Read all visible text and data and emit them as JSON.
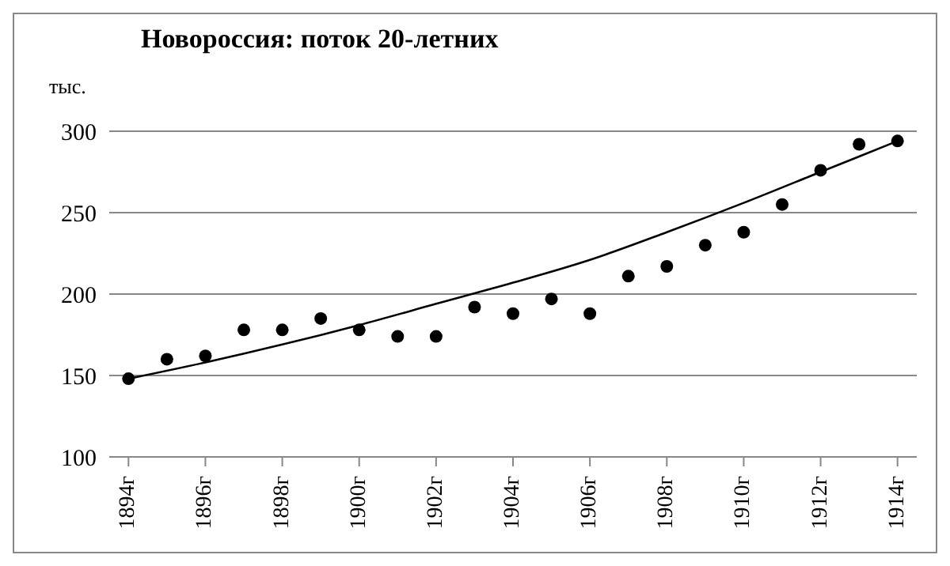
{
  "chart_data": {
    "type": "scatter",
    "title": "Новороссия: поток 20-летних",
    "ylabel": "тыс.",
    "x": [
      1894,
      1895,
      1896,
      1897,
      1898,
      1899,
      1900,
      1901,
      1902,
      1903,
      1904,
      1905,
      1906,
      1907,
      1908,
      1909,
      1910,
      1911,
      1912,
      1913,
      1914
    ],
    "series": [
      {
        "color": "#000000",
        "marker": "circle",
        "values": [
          148,
          160,
          162,
          178,
          178,
          185,
          178,
          174,
          174,
          192,
          188,
          197,
          188,
          211,
          217,
          230,
          238,
          255,
          276,
          292,
          294
        ]
      },
      {
        "type": "line",
        "color": "#000000",
        "marker": "none",
        "x": [
          1894,
          1896,
          1898,
          1900,
          1902,
          1904,
          1906,
          1908,
          1910,
          1912,
          1914
        ],
        "values": [
          148,
          158,
          169,
          181,
          194,
          207,
          221,
          238,
          256,
          275,
          294
        ]
      }
    ],
    "xlim": [
      1893.5,
      1914.5
    ],
    "xticks": [
      {
        "value": 1894,
        "label": "1894г"
      },
      {
        "value": 1896,
        "label": "1896г"
      },
      {
        "value": 1898,
        "label": "1898г"
      },
      {
        "value": 1900,
        "label": "1900г"
      },
      {
        "value": 1902,
        "label": "1902г"
      },
      {
        "value": 1904,
        "label": "1904г"
      },
      {
        "value": 1906,
        "label": "1906г"
      },
      {
        "value": 1908,
        "label": "1908г"
      },
      {
        "value": 1910,
        "label": "1910г"
      },
      {
        "value": 1912,
        "label": "1912г"
      },
      {
        "value": 1914,
        "label": "1914г"
      }
    ],
    "ylim": [
      100,
      300
    ],
    "yticks": [
      100,
      150,
      200,
      250,
      300
    ],
    "grid": "y",
    "legend": false
  }
}
